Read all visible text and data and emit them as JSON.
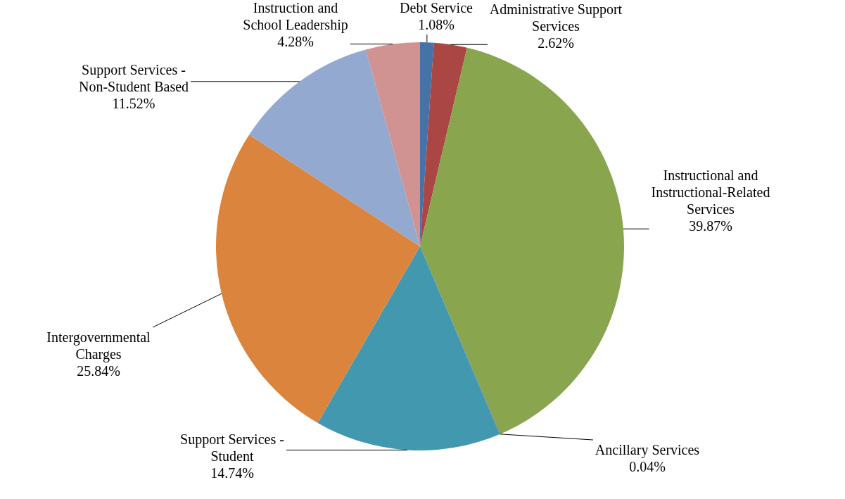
{
  "chart_data": {
    "type": "pie",
    "categories": [
      "Debt Service",
      "Administrative Support Services",
      "Instructional and Instructional-Related Services",
      "Ancillary Services",
      "Support Services - Student",
      "Intergovernmental Charges",
      "Support Services - Non-Student Based",
      "Instruction and School Leadership"
    ],
    "values": [
      1.08,
      2.62,
      39.87,
      0.04,
      14.74,
      25.84,
      11.52,
      4.28
    ],
    "value_labels": [
      "1.08%",
      "2.62%",
      "39.87%",
      "0.04%",
      "14.74%",
      "25.84%",
      "11.52%",
      "4.28%"
    ],
    "colors": [
      "#4572a7",
      "#aa4643",
      "#89a54e",
      "#71588f",
      "#4198af",
      "#db843d",
      "#93a9cf",
      "#d09392"
    ]
  }
}
